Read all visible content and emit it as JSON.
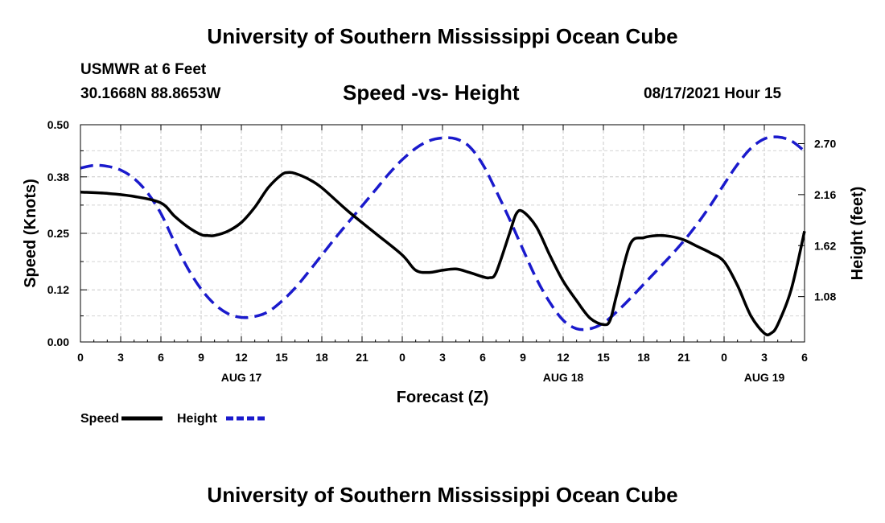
{
  "header": {
    "title": "University of Southern Mississippi Ocean Cube",
    "station": "USMWR at 6 Feet",
    "coords": "30.1668N  88.8653W",
    "chart_title": "Speed -vs- Height",
    "date": "08/17/2021 Hour 15"
  },
  "footer": {
    "title": "University of Southern Mississippi Ocean Cube"
  },
  "chart_data": {
    "type": "line",
    "title": "Speed -vs- Height",
    "xlabel": "Forecast (Z)",
    "ylabel": "Speed (Knots)",
    "y2label": "Height (feet)",
    "x_range_hours": [
      0,
      54
    ],
    "ylim": [
      0,
      0.5
    ],
    "y2lim": [
      0.6,
      2.9
    ],
    "x_ticks": [
      0,
      3,
      6,
      9,
      12,
      15,
      18,
      21,
      24,
      27,
      30,
      33,
      36,
      39,
      42,
      45,
      48,
      51,
      54
    ],
    "x_tick_labels": [
      "0",
      "3",
      "6",
      "9",
      "12",
      "15",
      "18",
      "21",
      "0",
      "3",
      "6",
      "9",
      "12",
      "15",
      "18",
      "21",
      "0",
      "3",
      "6"
    ],
    "y_ticks": [
      0.0,
      0.12,
      0.25,
      0.38,
      0.5
    ],
    "y_tick_labels": [
      "0.00",
      "0.12",
      "0.25",
      "0.38",
      "0.50"
    ],
    "y2_ticks": [
      1.08,
      1.62,
      2.16,
      2.7
    ],
    "y2_tick_labels": [
      "1.08",
      "1.62",
      "2.16",
      "2.70"
    ],
    "date_labels": [
      {
        "hour": 12,
        "label": "AUG 17"
      },
      {
        "hour": 36,
        "label": "AUG 18"
      },
      {
        "hour": 51,
        "label": "AUG 19"
      }
    ],
    "grid": true,
    "series": [
      {
        "name": "Speed",
        "axis": "left",
        "color": "#000000",
        "style": "solid",
        "x": [
          0,
          2,
          4,
          6,
          7,
          8,
          9,
          9.5,
          10,
          11,
          12,
          13,
          14,
          15,
          15.5,
          16,
          17,
          18,
          20,
          22,
          24,
          25,
          26,
          27,
          28,
          29,
          30,
          30.5,
          31,
          32,
          32.5,
          33,
          34,
          35,
          36,
          37,
          38,
          39,
          39.5,
          40,
          41,
          42,
          43,
          44,
          45,
          46,
          47,
          48,
          49,
          50,
          51,
          51.5,
          52,
          53,
          54
        ],
        "values": [
          0.345,
          0.342,
          0.335,
          0.32,
          0.29,
          0.265,
          0.247,
          0.245,
          0.245,
          0.255,
          0.275,
          0.31,
          0.355,
          0.385,
          0.39,
          0.388,
          0.375,
          0.355,
          0.3,
          0.25,
          0.2,
          0.165,
          0.16,
          0.165,
          0.168,
          0.16,
          0.15,
          0.148,
          0.16,
          0.25,
          0.295,
          0.3,
          0.265,
          0.2,
          0.14,
          0.095,
          0.055,
          0.04,
          0.05,
          0.11,
          0.225,
          0.24,
          0.245,
          0.243,
          0.235,
          0.22,
          0.205,
          0.185,
          0.13,
          0.06,
          0.02,
          0.02,
          0.04,
          0.12,
          0.255
        ]
      },
      {
        "name": "Height",
        "axis": "right",
        "color": "#1a1acc",
        "style": "dashed",
        "x": [
          0,
          1,
          2,
          3,
          4,
          5,
          6,
          7,
          8,
          9,
          10,
          11,
          12,
          13,
          14,
          15,
          16,
          17,
          18,
          19,
          20,
          21,
          22,
          23,
          24,
          25,
          26,
          27,
          28,
          29,
          30,
          31,
          32,
          33,
          34,
          35,
          36,
          37,
          38,
          39,
          40,
          41,
          42,
          43,
          44,
          45,
          46,
          47,
          48,
          49,
          50,
          51,
          52,
          53,
          54
        ],
        "values": [
          2.44,
          2.47,
          2.46,
          2.42,
          2.33,
          2.18,
          1.96,
          1.66,
          1.38,
          1.16,
          1.0,
          0.9,
          0.86,
          0.87,
          0.92,
          1.03,
          1.17,
          1.34,
          1.52,
          1.7,
          1.87,
          2.04,
          2.21,
          2.38,
          2.53,
          2.65,
          2.73,
          2.76,
          2.75,
          2.67,
          2.48,
          2.2,
          1.9,
          1.58,
          1.27,
          1.02,
          0.83,
          0.74,
          0.74,
          0.8,
          0.92,
          1.06,
          1.21,
          1.36,
          1.51,
          1.67,
          1.85,
          2.05,
          2.27,
          2.48,
          2.65,
          2.75,
          2.77,
          2.73,
          2.62
        ]
      }
    ],
    "legend": [
      {
        "label": "Speed",
        "color": "#000000",
        "style": "solid"
      },
      {
        "label": "Height",
        "color": "#1a1acc",
        "style": "dashed"
      }
    ]
  }
}
